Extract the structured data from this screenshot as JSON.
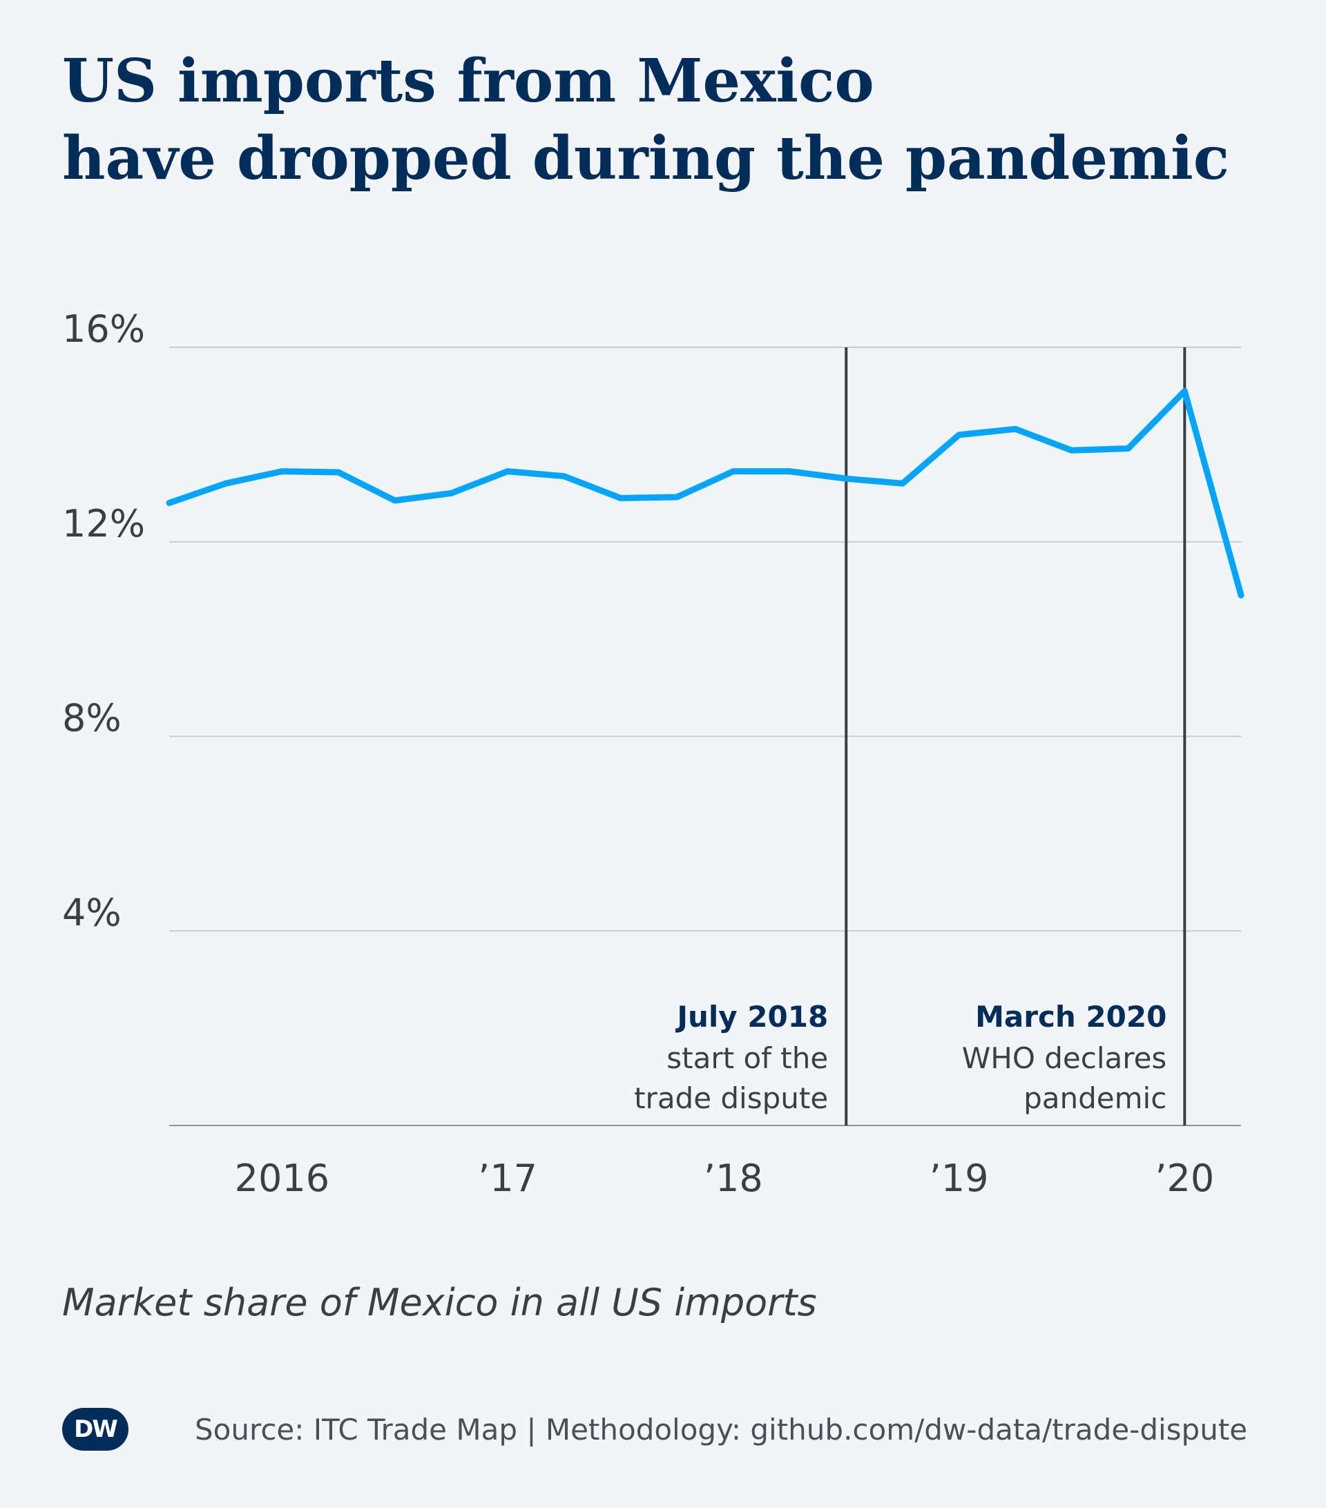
{
  "header": {
    "title_line1": "US imports from Mexico",
    "title_line2": "have dropped during the pandemic"
  },
  "subtitle": "Market share of Mexico in all US imports",
  "footer": {
    "logo_text": "DW",
    "source": "Source: ITC Trade Map | Methodology: github.com/dw-data/trade-dispute"
  },
  "colors": {
    "background": "#f2f4f6",
    "line": "#00a5ff",
    "title": "#002d5a",
    "gridline": "#c8ccd1",
    "marker_line": "#3b3f45",
    "text": "#3b3f45"
  },
  "chart_data": {
    "type": "line",
    "x_quarters": [
      "2015Q3",
      "2015Q4",
      "2016Q1",
      "2016Q2",
      "2016Q3",
      "2016Q4",
      "2017Q1",
      "2017Q2",
      "2017Q3",
      "2017Q4",
      "2018Q1",
      "2018Q2",
      "2018Q3",
      "2018Q4",
      "2019Q1",
      "2019Q2",
      "2019Q3",
      "2019Q4",
      "2020Q1",
      "2020Q2"
    ],
    "series": [
      {
        "values": [
          12.8,
          13.2,
          13.45,
          13.43,
          12.85,
          13.0,
          13.45,
          13.35,
          12.9,
          12.92,
          13.45,
          13.45,
          13.3,
          13.2,
          14.2,
          14.32,
          13.88,
          13.92,
          15.1,
          10.9
        ]
      }
    ],
    "ylim": [
      0,
      16
    ],
    "y_ticks": [
      {
        "value": 4,
        "label": "4%"
      },
      {
        "value": 8,
        "label": "8%"
      },
      {
        "value": 12,
        "label": "12%"
      },
      {
        "value": 16,
        "label": "16%"
      }
    ],
    "x_ticks": [
      {
        "at": "2016Q1",
        "label": "2016"
      },
      {
        "at": "2017Q1",
        "label": "’17"
      },
      {
        "at": "2018Q1",
        "label": "’18"
      },
      {
        "at": "2019Q1",
        "label": "’19"
      },
      {
        "at": "2020Q1",
        "label": "’20"
      }
    ],
    "annotations": [
      {
        "at": "2018Q3",
        "title": "July 2018",
        "lines": [
          "start of the",
          "trade dispute"
        ]
      },
      {
        "at": "2020Q1",
        "title": "March 2020",
        "lines": [
          "WHO declares",
          "pandemic"
        ]
      }
    ],
    "grid": true
  }
}
